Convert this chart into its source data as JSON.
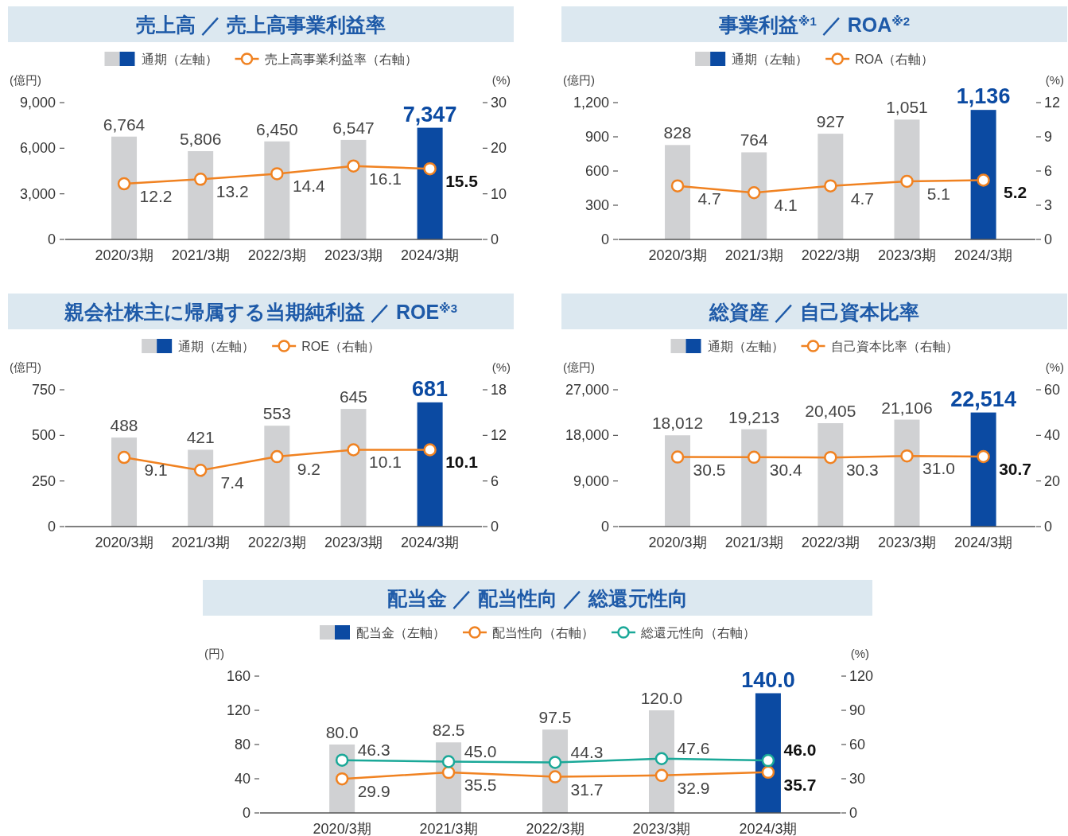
{
  "chart_data": [
    {
      "type": "bar",
      "title": "売上高 ／ 売上高事業利益率",
      "legend": "top",
      "marker": "circle",
      "grid": false,
      "ylabel": "(億円)",
      "y2label": "(%)",
      "categories": [
        "2020/3期",
        "2021/3期",
        "2022/3期",
        "2023/3期",
        "2024/3期"
      ],
      "ylim": [
        0,
        9000
      ],
      "yticks": [
        0,
        {
          "value": 3000,
          "label": "3,000"
        },
        {
          "value": 6000,
          "label": "6,000"
        },
        {
          "value": 9000,
          "label": "9,000"
        }
      ],
      "y2lim": [
        0,
        30
      ],
      "y2ticks": [
        0,
        10,
        20,
        30
      ],
      "series": [
        {
          "name": "通期（左軸）",
          "type": "bar",
          "colors": [
            "#d0d1d3",
            "#d0d1d3",
            "#d0d1d3",
            "#d0d1d3",
            "#0b4aa2"
          ],
          "values": [
            6764,
            5806,
            6450,
            6547,
            7347
          ],
          "value_labels": [
            "6,764",
            "5,806",
            "6,450",
            "6,547",
            "7,347"
          ]
        },
        {
          "name": "売上高事業利益率（右軸）",
          "type": "line",
          "axis": "y2",
          "color": "#f08221",
          "values": [
            12.2,
            13.2,
            14.4,
            16.1,
            15.5
          ],
          "value_labels": [
            "12.2",
            "13.2",
            "14.4",
            "16.1",
            "15.5"
          ]
        }
      ]
    },
    {
      "type": "bar",
      "title": "事業利益$^{※1}$ ／ ROA$^{※2}$",
      "legend": "top",
      "marker": "circle",
      "grid": false,
      "ylabel": "(億円)",
      "y2label": "(%)",
      "categories": [
        "2020/3期",
        "2021/3期",
        "2022/3期",
        "2023/3期",
        "2024/3期"
      ],
      "ylim": [
        0,
        1200
      ],
      "yticks": [
        0,
        300,
        600,
        900,
        {
          "value": 1200,
          "label": "1,200"
        }
      ],
      "y2lim": [
        0,
        12
      ],
      "y2ticks": [
        0,
        3,
        6,
        9,
        12
      ],
      "series": [
        {
          "name": "通期（左軸）",
          "type": "bar",
          "colors": [
            "#d0d1d3",
            "#d0d1d3",
            "#d0d1d3",
            "#d0d1d3",
            "#0b4aa2"
          ],
          "values": [
            828,
            764,
            927,
            1051,
            1136
          ],
          "value_labels": [
            "828",
            "764",
            "927",
            "1,051",
            "1,136"
          ]
        },
        {
          "name": "ROA（右軸）",
          "type": "line",
          "axis": "y2",
          "color": "#f08221",
          "values": [
            4.7,
            4.1,
            4.7,
            5.1,
            5.2
          ],
          "value_labels": [
            "4.7",
            "4.1",
            "4.7",
            "5.1",
            "5.2"
          ]
        }
      ]
    },
    {
      "type": "bar",
      "title": "親会社株主に帰属する当期純利益 ／ ROE$^{※3}$",
      "legend": "top",
      "marker": "circle",
      "grid": false,
      "ylabel": "(億円)",
      "y2label": "(%)",
      "categories": [
        "2020/3期",
        "2021/3期",
        "2022/3期",
        "2023/3期",
        "2024/3期"
      ],
      "ylim": [
        0,
        750
      ],
      "yticks": [
        0,
        250,
        500,
        750
      ],
      "y2lim": [
        0,
        18
      ],
      "y2ticks": [
        0,
        6,
        12,
        18
      ],
      "series": [
        {
          "name": "通期（左軸）",
          "type": "bar",
          "colors": [
            "#d0d1d3",
            "#d0d1d3",
            "#d0d1d3",
            "#d0d1d3",
            "#0b4aa2"
          ],
          "values": [
            488,
            421,
            553,
            645,
            681
          ],
          "value_labels": [
            "488",
            "421",
            "553",
            "645",
            "681"
          ]
        },
        {
          "name": "ROE（右軸）",
          "type": "line",
          "axis": "y2",
          "color": "#f08221",
          "values": [
            9.1,
            7.4,
            9.2,
            10.1,
            10.1
          ],
          "value_labels": [
            "9.1",
            "7.4",
            "9.2",
            "10.1",
            "10.1"
          ]
        }
      ]
    },
    {
      "type": "bar",
      "title": "総資産 ／ 自己資本比率",
      "legend": "top",
      "marker": "circle",
      "grid": false,
      "ylabel": "(億円)",
      "y2label": "(%)",
      "categories": [
        "2020/3期",
        "2021/3期",
        "2022/3期",
        "2023/3期",
        "2024/3期"
      ],
      "ylim": [
        0,
        27000
      ],
      "yticks": [
        0,
        {
          "value": 9000,
          "label": "9,000"
        },
        {
          "value": 18000,
          "label": "18,000"
        },
        {
          "value": 27000,
          "label": "27,000"
        }
      ],
      "y2lim": [
        0,
        60
      ],
      "y2ticks": [
        0,
        20,
        40,
        60
      ],
      "series": [
        {
          "name": "通期（左軸）",
          "type": "bar",
          "colors": [
            "#d0d1d3",
            "#d0d1d3",
            "#d0d1d3",
            "#d0d1d3",
            "#0b4aa2"
          ],
          "values": [
            18012,
            19213,
            20405,
            21106,
            22514
          ],
          "value_labels": [
            "18,012",
            "19,213",
            "20,405",
            "21,106",
            "22,514"
          ]
        },
        {
          "name": "自己資本比率（右軸）",
          "type": "line",
          "axis": "y2",
          "color": "#f08221",
          "values": [
            30.5,
            30.4,
            30.3,
            31.0,
            30.7
          ],
          "value_labels": [
            "30.5",
            "30.4",
            "30.3",
            "31.0",
            "30.7"
          ]
        }
      ]
    },
    {
      "type": "bar",
      "title": "配当金 ／ 配当性向 ／ 総還元性向",
      "legend": "top",
      "marker": "circle",
      "grid": false,
      "ylabel": "(円)",
      "y2label": "(%)",
      "categories": [
        "2020/3期",
        "2021/3期",
        "2022/3期",
        "2023/3期",
        "2024/3期"
      ],
      "ylim": [
        0,
        160
      ],
      "yticks": [
        0,
        40,
        80,
        120,
        160
      ],
      "y2lim": [
        0,
        120
      ],
      "y2ticks": [
        0,
        30,
        60,
        90,
        120
      ],
      "series": [
        {
          "name": "配当金（左軸）",
          "type": "bar",
          "colors": [
            "#d0d1d3",
            "#d0d1d3",
            "#d0d1d3",
            "#d0d1d3",
            "#0b4aa2"
          ],
          "values": [
            80.0,
            82.5,
            97.5,
            120.0,
            140.0
          ],
          "value_labels": [
            "80.0",
            "82.5",
            "97.5",
            "120.0",
            "140.0"
          ]
        },
        {
          "name": "配当性向（右軸）",
          "type": "line",
          "axis": "y2",
          "color": "#f08221",
          "values": [
            29.9,
            35.5,
            31.7,
            32.9,
            35.7
          ],
          "value_labels": [
            "29.9",
            "35.5",
            "31.7",
            "32.9",
            "35.7"
          ]
        },
        {
          "name": "総還元性向（右軸）",
          "type": "line",
          "axis": "y2",
          "color": "#1aa898",
          "values": [
            46.3,
            45.0,
            44.3,
            47.6,
            46.0
          ],
          "value_labels": [
            "46.3",
            "45.0",
            "44.3",
            "47.6",
            "46.0"
          ]
        }
      ]
    }
  ]
}
